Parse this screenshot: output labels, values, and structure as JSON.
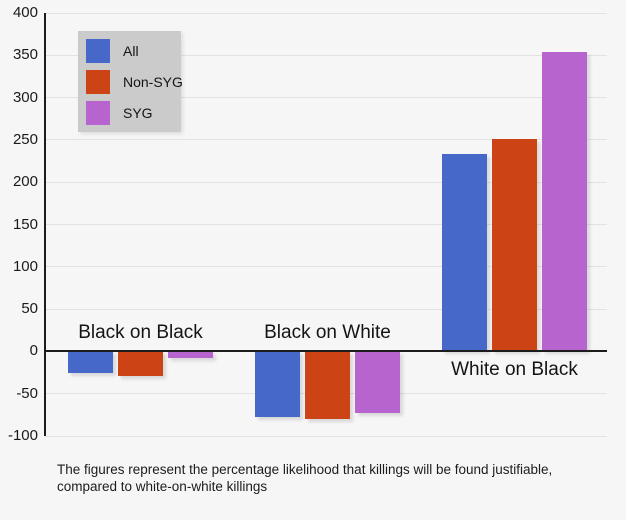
{
  "caption": {
    "line1": "The figures represent the percentage likelihood that killings will be found justifiable,",
    "line2": "compared to white-on-white killings"
  },
  "chart_data": {
    "type": "bar",
    "title": "",
    "categories": [
      "Black on Black",
      "Black on White",
      "White on Black"
    ],
    "series": [
      {
        "name": "All",
        "color": "#4668c8",
        "values": [
          -26,
          -77,
          233
        ]
      },
      {
        "name": "Non-SYG",
        "color": "#cc4416",
        "values": [
          -29,
          -80,
          251
        ]
      },
      {
        "name": "SYG",
        "color": "#b864ce",
        "values": [
          -8,
          -73,
          354
        ]
      }
    ],
    "ylim": [
      -100,
      400
    ],
    "yticks": [
      400,
      350,
      300,
      250,
      200,
      150,
      100,
      50,
      0,
      -50,
      -100
    ],
    "grid": true,
    "legend_position": "top-left",
    "background_color": "#f6f6f6",
    "gridline_color": "#e2e2e2",
    "axis_color": "#1c1c1c",
    "legend_background": "#cbcbcb",
    "caption_lines": [
      "The figures represent the percentage likelihood that killings will be found justifiable,",
      "compared to white-on-white killings"
    ]
  }
}
